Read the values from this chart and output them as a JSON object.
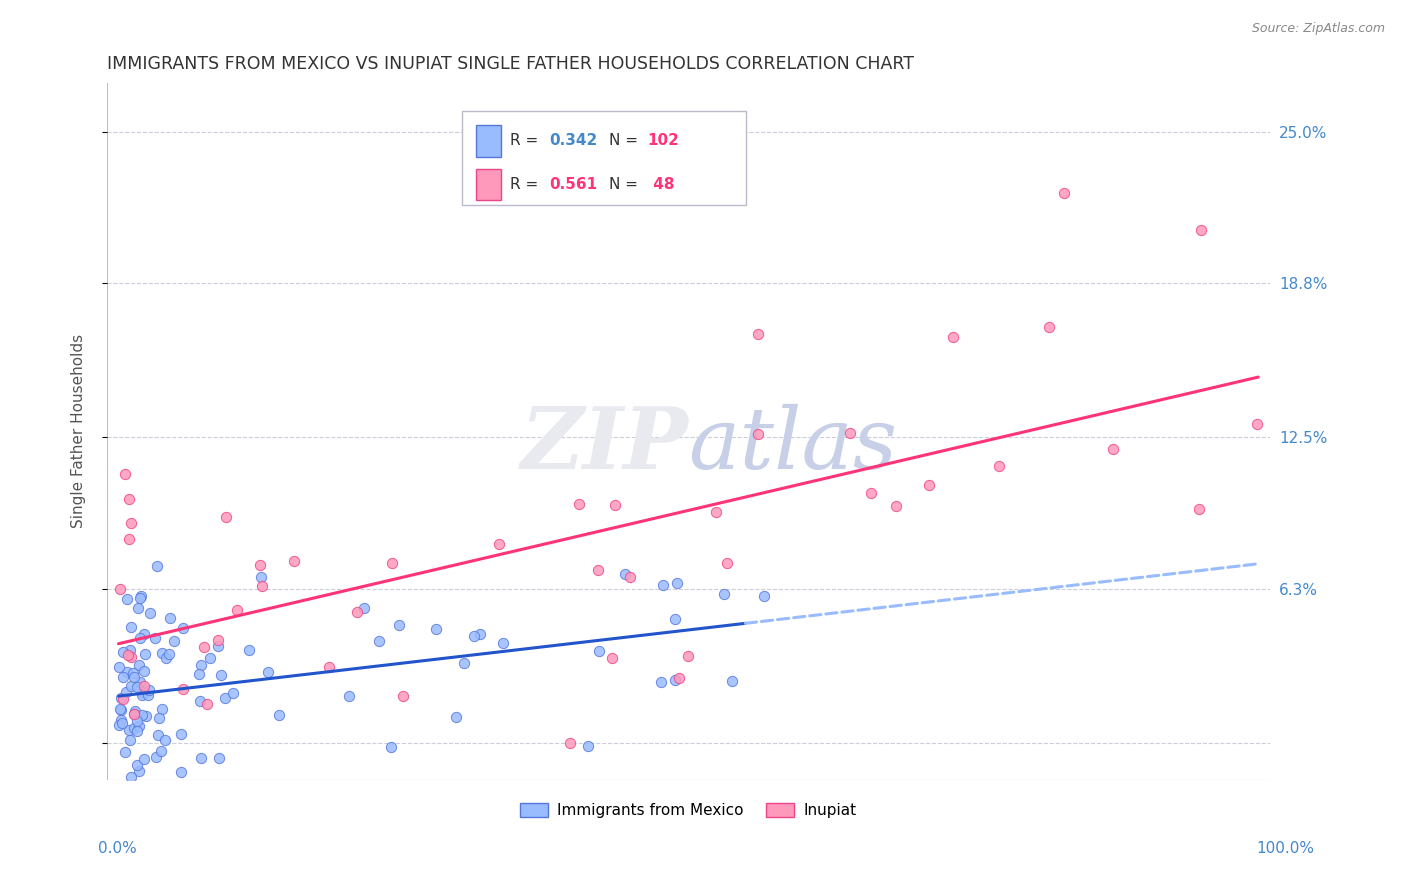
{
  "title": "IMMIGRANTS FROM MEXICO VS INUPIAT SINGLE FATHER HOUSEHOLDS CORRELATION CHART",
  "source": "Source: ZipAtlas.com",
  "ylabel": "Single Father Households",
  "ytick_vals": [
    0.0,
    6.3,
    12.5,
    18.8,
    25.0
  ],
  "ytick_labels": [
    "",
    "6.3%",
    "12.5%",
    "18.8%",
    "25.0%"
  ],
  "xlim": [
    -1,
    101
  ],
  "ylim": [
    -1.5,
    27
  ],
  "legend_blue_R": "0.342",
  "legend_blue_N": "102",
  "legend_pink_R": "0.561",
  "legend_pink_N": "48",
  "blue_scatter_color": "#99BBFF",
  "blue_edge_color": "#5577DD",
  "pink_scatter_color": "#FF99BB",
  "pink_edge_color": "#EE4488",
  "trendline_blue_solid_color": "#2255CC",
  "trendline_blue_dash_color": "#99BBFF",
  "trendline_pink_color": "#FF3377",
  "watermark_color": "#E8EAF0",
  "grid_color": "#CCCCDD",
  "tick_color": "#4488CC",
  "title_color": "#333333",
  "source_color": "#888888"
}
